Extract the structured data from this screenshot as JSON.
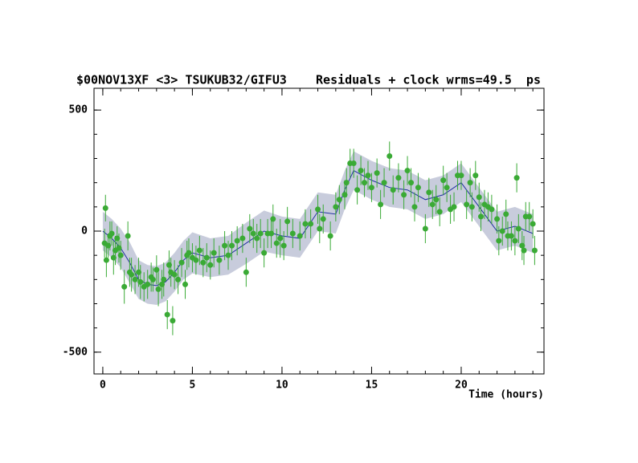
{
  "chart_data": {
    "type": "scatter",
    "title": "$00NOV13XF <3> TSUKUB32/GIFU3    Residuals + clock wrms=49.5  ps",
    "xlabel": "Time (hours)",
    "xlim": [
      -0.49,
      24.62
    ],
    "ylim": [
      -590,
      590
    ],
    "xticks": [
      0,
      5,
      10,
      15,
      20
    ],
    "yticks": [
      -500,
      0,
      500
    ],
    "xminor": 1,
    "yminor": 100,
    "series": [
      {
        "color": "#3aaa35",
        "x": [
          0.1,
          0.15,
          0.2,
          0.3,
          0.4,
          0.5,
          0.6,
          0.7,
          0.8,
          0.9,
          1.0,
          1.2,
          1.4,
          1.5,
          1.6,
          1.8,
          2.0,
          2.1,
          2.3,
          2.5,
          2.7,
          2.8,
          3.0,
          3.1,
          3.3,
          3.4,
          3.6,
          3.7,
          3.8,
          3.9,
          4.0,
          4.2,
          4.4,
          4.6,
          4.7,
          4.8,
          5.0,
          5.2,
          5.4,
          5.6,
          5.8,
          6.0,
          6.2,
          6.5,
          6.8,
          7.0,
          7.2,
          7.5,
          7.8,
          8.0,
          8.2,
          8.4,
          8.6,
          8.8,
          9.0,
          9.2,
          9.4,
          9.5,
          9.7,
          9.9,
          10.1,
          10.3,
          10.6,
          11.0,
          11.3,
          11.6,
          12.0,
          12.1,
          12.3,
          12.7,
          13.0,
          13.2,
          13.5,
          13.6,
          13.8,
          14.0,
          14.2,
          14.4,
          14.6,
          14.8,
          15.0,
          15.3,
          15.5,
          15.7,
          16.0,
          16.2,
          16.5,
          16.8,
          17.0,
          17.2,
          17.4,
          17.6,
          18.0,
          18.2,
          18.4,
          18.6,
          18.8,
          19.0,
          19.2,
          19.4,
          19.6,
          19.8,
          20.0,
          20.3,
          20.5,
          20.6,
          20.8,
          21.0,
          21.1,
          21.3,
          21.5,
          21.7,
          22.0,
          22.1,
          22.3,
          22.5,
          22.6,
          22.8,
          23.0,
          23.1,
          23.2,
          23.4,
          23.5,
          23.6,
          23.8,
          24.0,
          24.1
        ],
        "values": [
          -50,
          95,
          -120,
          -60,
          -20,
          -10,
          -110,
          -80,
          -30,
          -70,
          -100,
          -230,
          -20,
          -170,
          -180,
          -200,
          -170,
          -210,
          -230,
          -220,
          -190,
          -200,
          -160,
          -240,
          -220,
          -200,
          -345,
          -140,
          -170,
          -370,
          -180,
          -200,
          -130,
          -220,
          -100,
          -90,
          -110,
          -120,
          -80,
          -130,
          -110,
          -140,
          -90,
          -120,
          -60,
          -100,
          -60,
          -40,
          -30,
          -170,
          10,
          -10,
          -30,
          -10,
          -90,
          -10,
          -10,
          50,
          -50,
          -30,
          -60,
          40,
          -10,
          -20,
          30,
          30,
          90,
          10,
          50,
          -20,
          100,
          130,
          150,
          200,
          280,
          280,
          170,
          250,
          200,
          230,
          180,
          240,
          110,
          200,
          310,
          170,
          220,
          150,
          250,
          200,
          100,
          180,
          10,
          160,
          110,
          130,
          80,
          210,
          180,
          90,
          100,
          230,
          230,
          110,
          200,
          100,
          230,
          140,
          60,
          110,
          100,
          90,
          50,
          -40,
          0,
          70,
          -20,
          -20,
          -40,
          220,
          10,
          -60,
          -80,
          60,
          60,
          30,
          -80
        ],
        "errors": [
          60,
          55,
          70,
          50,
          60,
          50,
          70,
          60,
          50,
          60,
          60,
          70,
          60,
          60,
          70,
          60,
          60,
          70,
          60,
          60,
          60,
          50,
          60,
          70,
          60,
          70,
          60,
          60,
          60,
          60,
          60,
          60,
          60,
          60,
          60,
          60,
          60,
          60,
          60,
          60,
          60,
          60,
          60,
          60,
          60,
          60,
          60,
          60,
          60,
          60,
          60,
          60,
          60,
          60,
          60,
          60,
          60,
          60,
          60,
          80,
          60,
          60,
          60,
          60,
          60,
          60,
          60,
          60,
          60,
          60,
          60,
          60,
          60,
          60,
          60,
          60,
          60,
          60,
          60,
          60,
          60,
          60,
          60,
          60,
          60,
          60,
          60,
          60,
          60,
          60,
          60,
          60,
          60,
          60,
          60,
          60,
          60,
          60,
          60,
          60,
          60,
          60,
          60,
          60,
          60,
          60,
          60,
          60,
          60,
          60,
          60,
          60,
          60,
          60,
          60,
          60,
          60,
          60,
          60,
          60,
          60,
          60,
          60,
          60,
          60,
          60,
          60
        ]
      }
    ],
    "model": {
      "color": "#2030a0",
      "x": [
        0,
        0.5,
        1,
        1.5,
        2,
        2.5,
        3,
        3.5,
        4,
        4.5,
        5,
        6,
        7,
        8,
        9,
        10,
        11,
        12,
        13,
        13.5,
        14,
        15,
        16,
        17,
        18,
        19,
        20,
        21,
        22,
        23,
        24
      ],
      "values": [
        0,
        -30,
        -70,
        -130,
        -200,
        -220,
        -225,
        -210,
        -170,
        -120,
        -90,
        -110,
        -100,
        -50,
        0,
        -20,
        -30,
        80,
        70,
        170,
        250,
        210,
        180,
        170,
        130,
        150,
        200,
        100,
        0,
        20,
        -10
      ]
    },
    "band": {
      "color": "#c8ccdc",
      "lower": [
        -80,
        -110,
        -150,
        -215,
        -280,
        -300,
        -305,
        -290,
        -250,
        -200,
        -175,
        -190,
        -180,
        -135,
        -85,
        -100,
        -110,
        0,
        -10,
        90,
        170,
        130,
        100,
        90,
        50,
        70,
        120,
        20,
        -80,
        -60,
        -90
      ],
      "upper": [
        80,
        50,
        10,
        -45,
        -120,
        -140,
        -145,
        -130,
        -90,
        -40,
        -5,
        -30,
        -20,
        35,
        85,
        60,
        50,
        160,
        150,
        250,
        330,
        290,
        260,
        250,
        210,
        230,
        280,
        180,
        80,
        100,
        70
      ]
    }
  }
}
